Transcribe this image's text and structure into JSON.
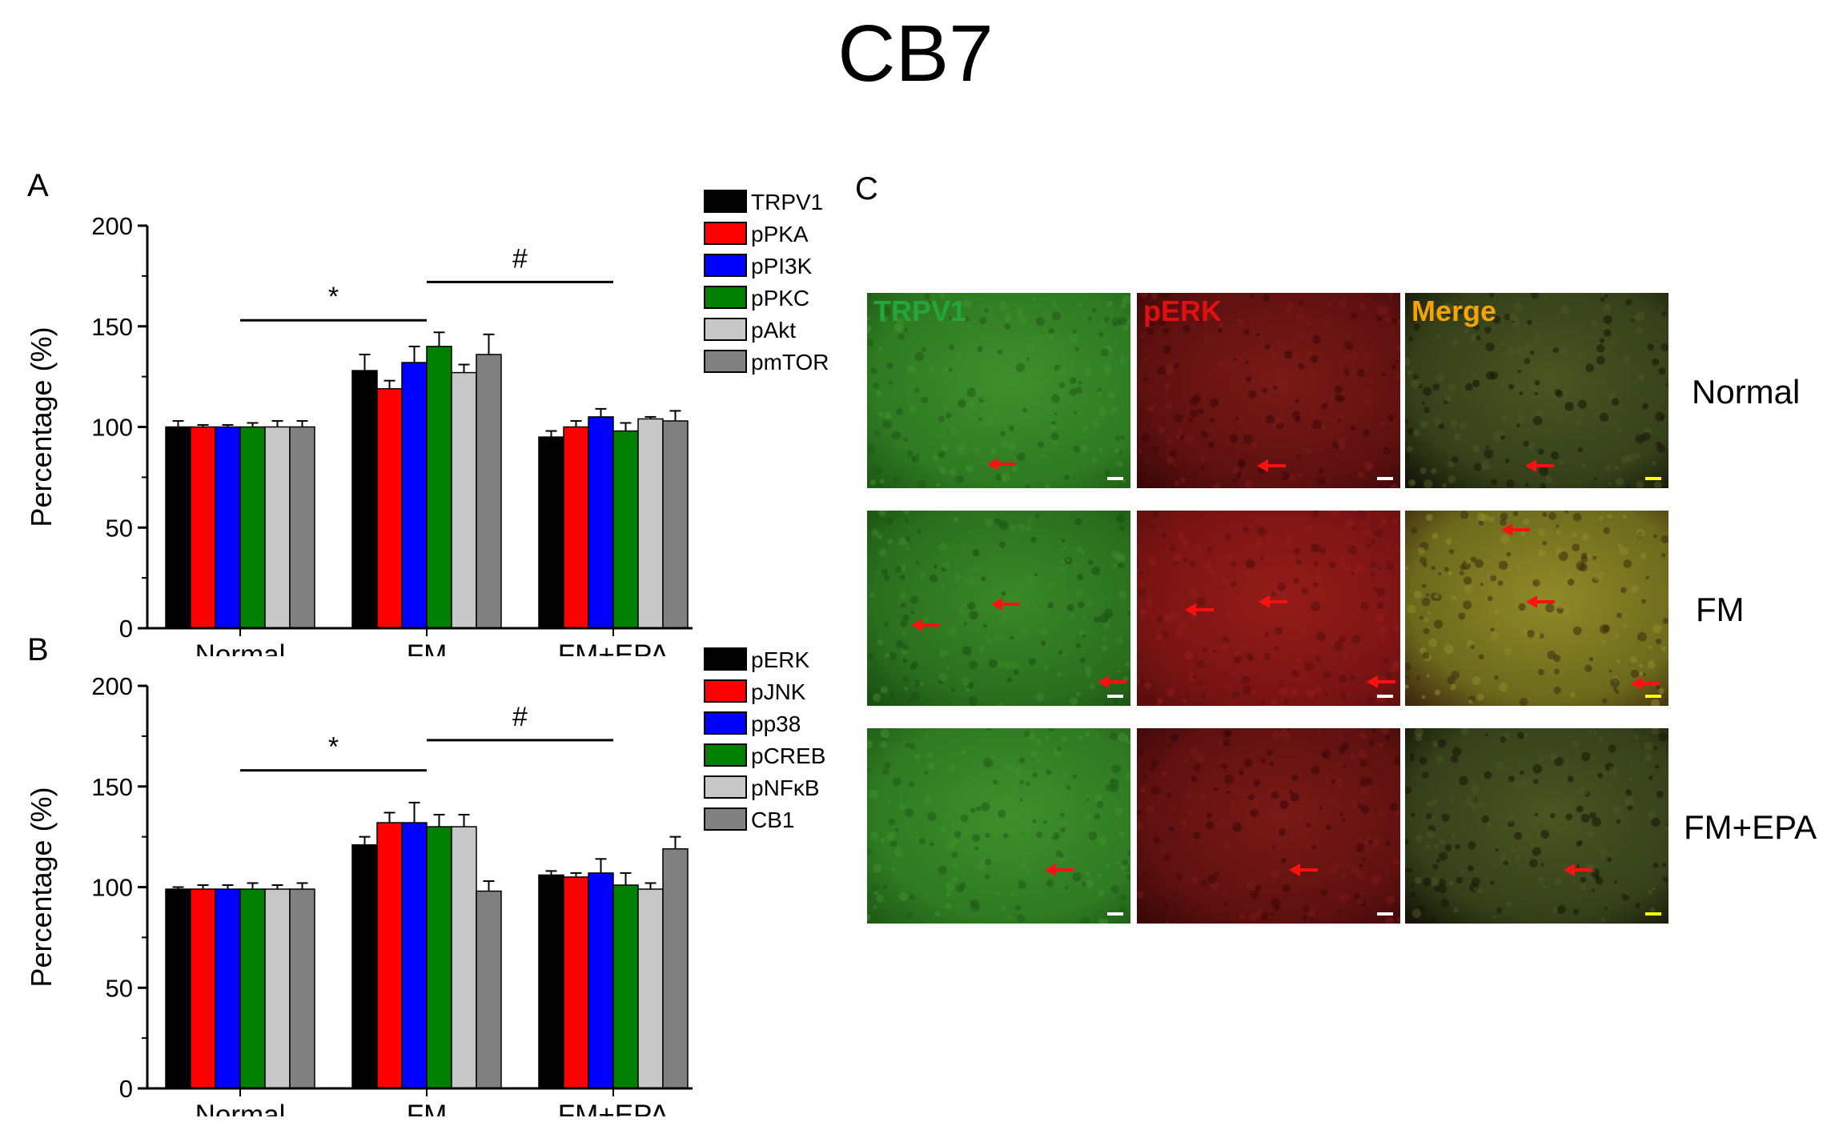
{
  "title": "CB7",
  "panels": {
    "a": "A",
    "b": "B",
    "c": "C"
  },
  "colors": {
    "black": "#000000",
    "red": "#ff0000",
    "blue": "#0000ff",
    "green": "#008000",
    "lightgray": "#c8c8c8",
    "gray": "#808080",
    "trpv1_label": "#22a83a",
    "perk_label": "#e01010",
    "merge_label": "#f5a300",
    "arrow": "#ff1010",
    "scalebar_white": "#ffffff",
    "scalebar_yellow": "#ffff00"
  },
  "chart_data": [
    {
      "type": "bar",
      "panel": "A",
      "categories": [
        "Normal",
        "FM",
        "FM+EPA"
      ],
      "ylabel": "Percentage (%)",
      "ylim": [
        0,
        200
      ],
      "yticks": [
        0,
        50,
        100,
        150,
        200
      ],
      "grid": false,
      "legend_position": "top-right, outside",
      "series": [
        {
          "name": "TRPV1",
          "color": "#000000",
          "values": [
            100,
            128,
            95
          ],
          "errors": [
            3,
            8,
            3
          ]
        },
        {
          "name": "pPKA",
          "color": "#ff0000",
          "values": [
            100,
            119,
            100
          ],
          "errors": [
            1,
            4,
            3
          ]
        },
        {
          "name": "pPI3K",
          "color": "#0000ff",
          "values": [
            100,
            132,
            105
          ],
          "errors": [
            1,
            8,
            4
          ]
        },
        {
          "name": "pPKC",
          "color": "#008000",
          "values": [
            100,
            140,
            98
          ],
          "errors": [
            2,
            7,
            4
          ]
        },
        {
          "name": "pAkt",
          "color": "#c8c8c8",
          "values": [
            100,
            127,
            104
          ],
          "errors": [
            3,
            4,
            1
          ]
        },
        {
          "name": "pmTOR",
          "color": "#808080",
          "values": [
            100,
            136,
            103
          ],
          "errors": [
            3,
            10,
            5
          ]
        }
      ],
      "annotations": [
        {
          "text": "*",
          "from": "Normal",
          "to": "FM",
          "y": 153
        },
        {
          "text": "#",
          "from": "FM",
          "to": "FM+EPA",
          "y": 172
        }
      ]
    },
    {
      "type": "bar",
      "panel": "B",
      "categories": [
        "Normal",
        "FM",
        "FM+EPA"
      ],
      "ylabel": "Percentage (%)",
      "ylim": [
        0,
        200
      ],
      "yticks": [
        0,
        50,
        100,
        150,
        200
      ],
      "grid": false,
      "legend_position": "top-right, outside",
      "series": [
        {
          "name": "pERK",
          "color": "#000000",
          "values": [
            99,
            121,
            106
          ],
          "errors": [
            1,
            4,
            2
          ]
        },
        {
          "name": "pJNK",
          "color": "#ff0000",
          "values": [
            99,
            132,
            105
          ],
          "errors": [
            2,
            5,
            2
          ]
        },
        {
          "name": "pp38",
          "color": "#0000ff",
          "values": [
            99,
            132,
            107
          ],
          "errors": [
            2,
            10,
            7
          ]
        },
        {
          "name": "pCREB",
          "color": "#008000",
          "values": [
            99,
            130,
            101
          ],
          "errors": [
            3,
            6,
            6
          ]
        },
        {
          "name": "pNFκB",
          "color": "#c8c8c8",
          "values": [
            99,
            130,
            99
          ],
          "errors": [
            2,
            6,
            3
          ]
        },
        {
          "name": "CB1",
          "color": "#808080",
          "values": [
            99,
            98,
            119
          ],
          "errors": [
            3,
            5,
            6
          ]
        }
      ],
      "annotations": [
        {
          "text": "*",
          "from": "Normal",
          "to": "FM",
          "y": 158
        },
        {
          "text": "#",
          "from": "FM",
          "to": "FM+EPA",
          "y": 173
        }
      ]
    }
  ],
  "micrographs": {
    "columns": [
      "TRPV1",
      "pERK",
      "Merge"
    ],
    "rows": [
      "Normal",
      "FM",
      "FM+EPA"
    ]
  }
}
